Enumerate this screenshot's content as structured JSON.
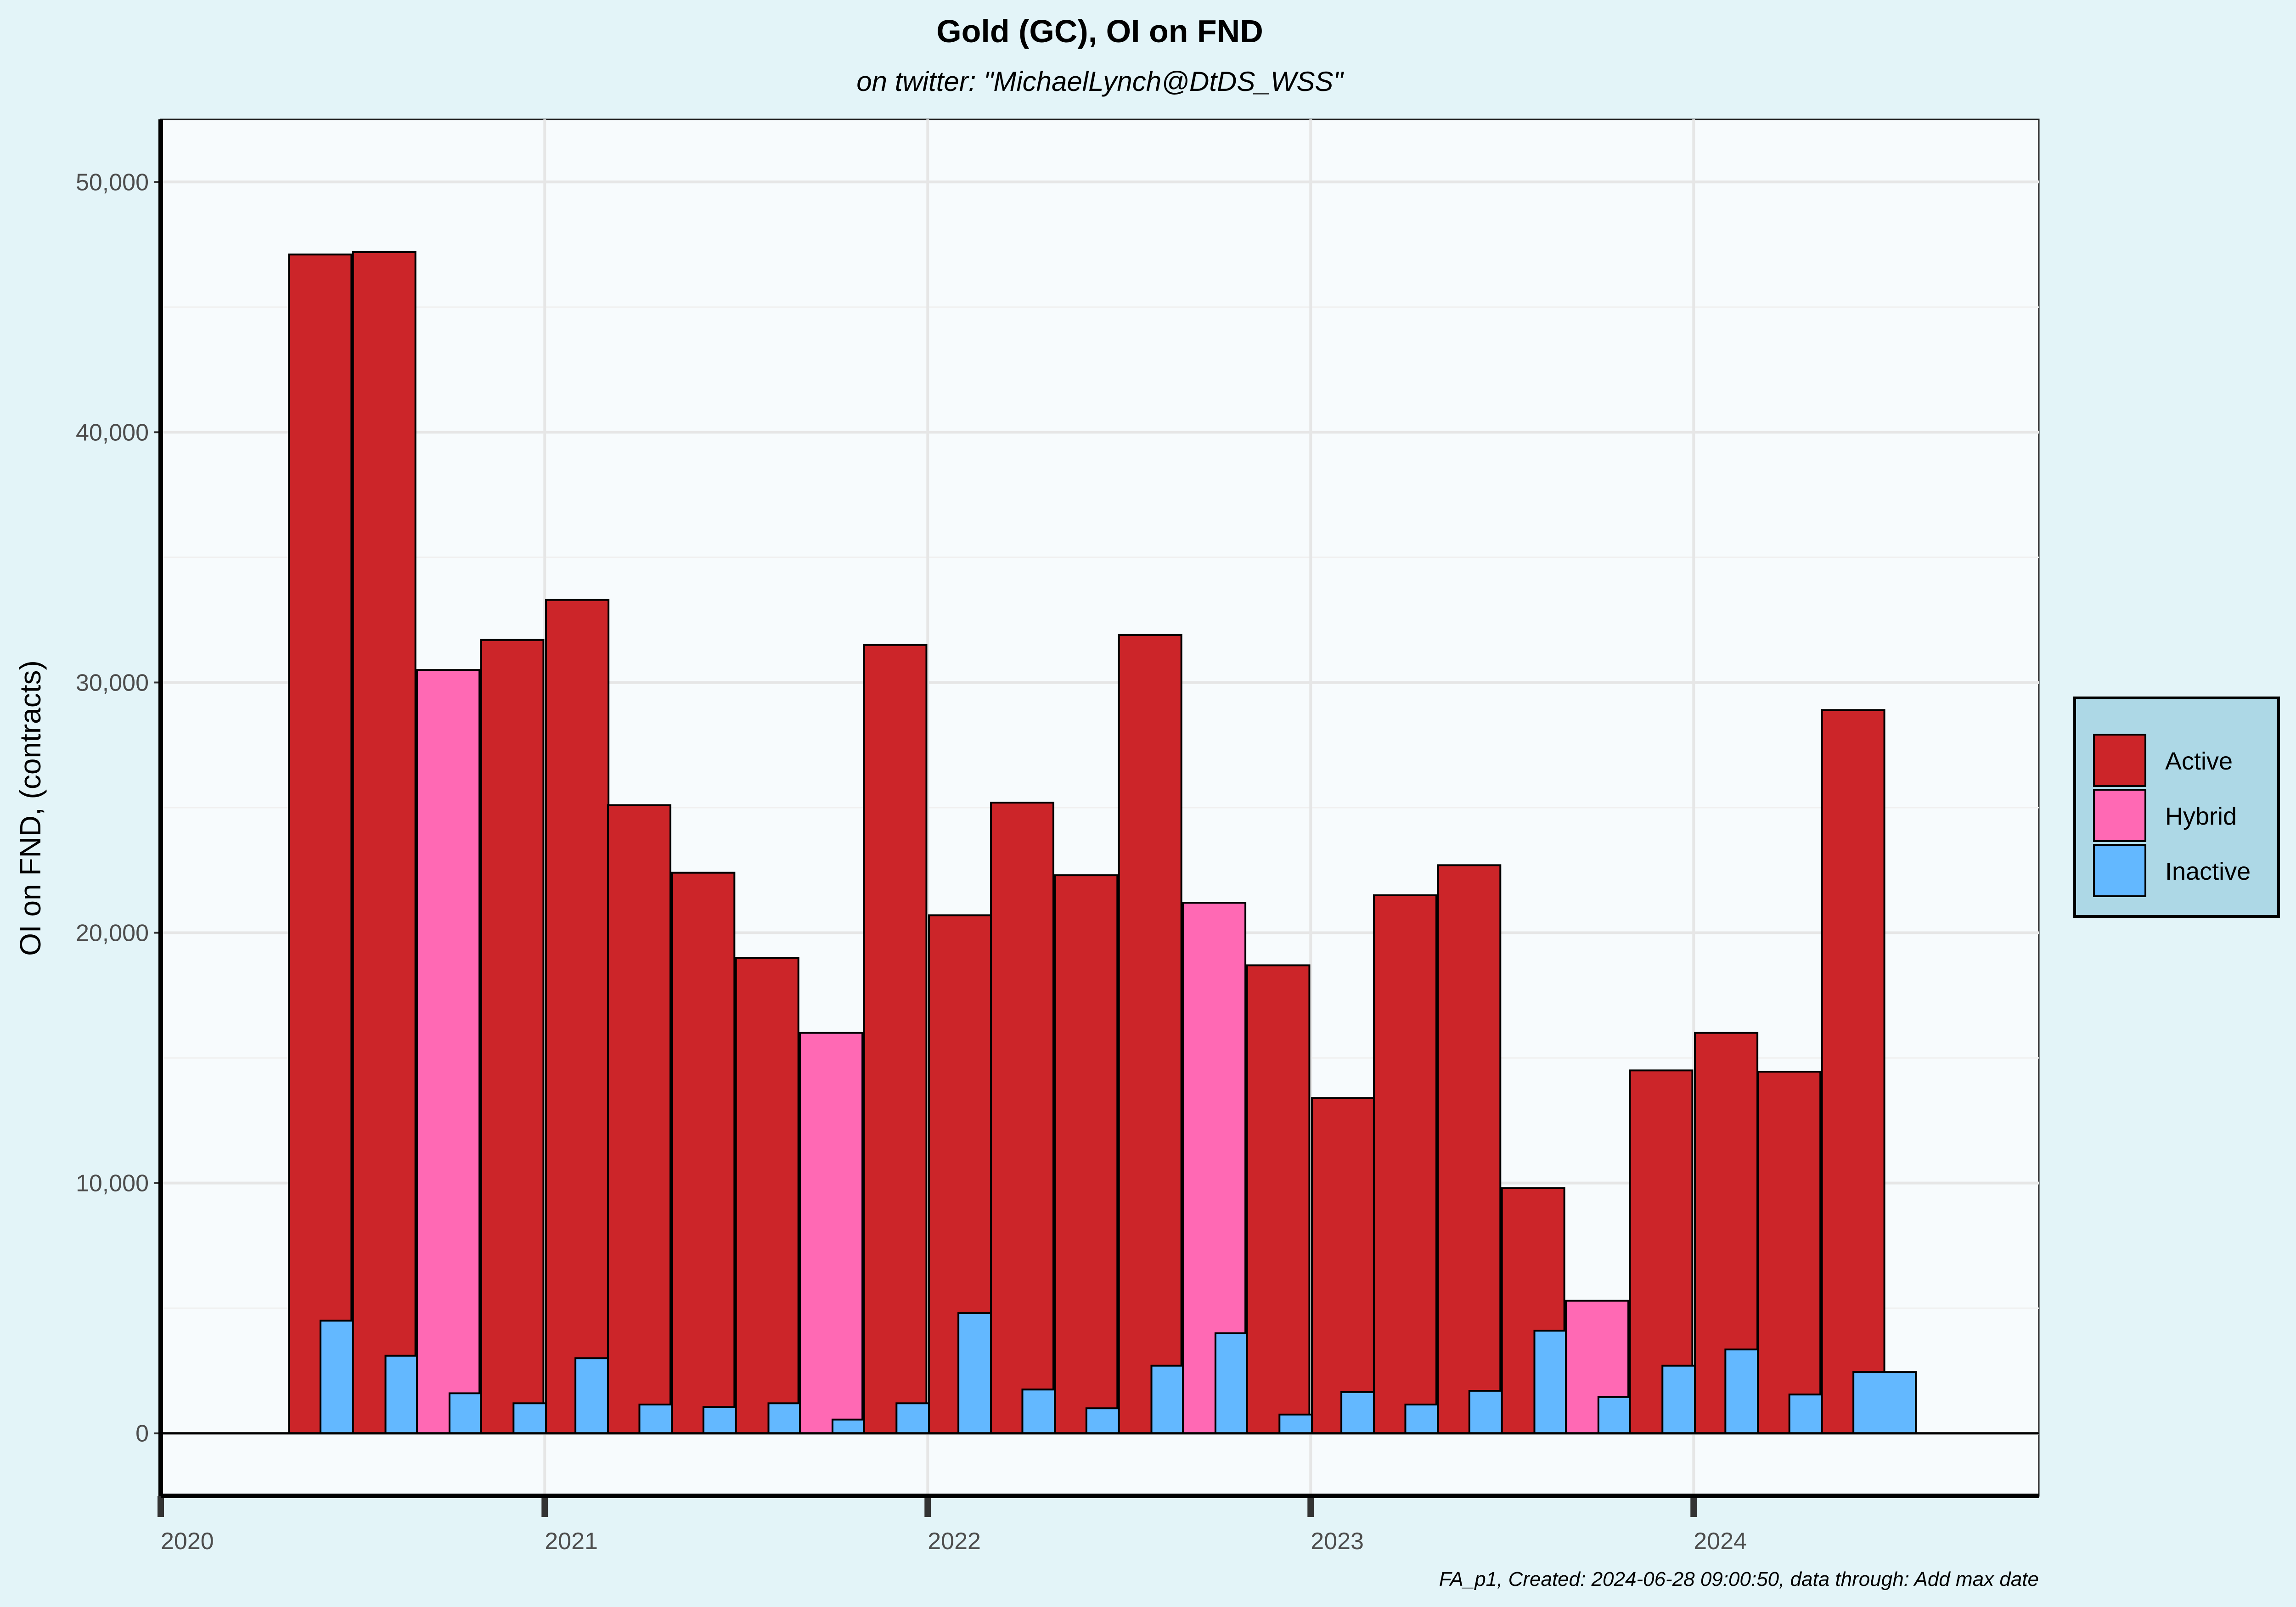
{
  "chart_data": {
    "type": "bar",
    "title": "Gold (GC), OI on FND",
    "subtitle": "on twitter:   \"MichaelLynch@DtDS_WSS\"",
    "xlabel": "",
    "ylabel": "OI on FND, (contracts)",
    "caption": "FA_p1, Created: 2024-06-28 09:00:50, data through:  Add max date",
    "x_tick_labels": [
      "2020",
      "2021",
      "2022",
      "2023",
      "2024"
    ],
    "y_tick_labels": [
      "0",
      "10,000",
      "20,000",
      "30,000",
      "40,000",
      "50,000"
    ],
    "ylim": [
      -2500,
      52500
    ],
    "xlim": [
      "2020-01-01",
      "2024-11-25"
    ],
    "grid": true,
    "legend": {
      "position": "right",
      "entries": [
        "Active",
        "Hybrid",
        "Inactive"
      ]
    },
    "colors": {
      "Active": "#cc2529",
      "Hybrid": "#ff69b4",
      "Inactive": "#63b8ff"
    },
    "bars": [
      {
        "date": "2020-06-01",
        "category": "Active",
        "value": 47100
      },
      {
        "date": "2020-07-01",
        "category": "Inactive",
        "value": 4500
      },
      {
        "date": "2020-08-01",
        "category": "Active",
        "value": 47200
      },
      {
        "date": "2020-09-01",
        "category": "Inactive",
        "value": 3100
      },
      {
        "date": "2020-10-01",
        "category": "Hybrid",
        "value": 30500
      },
      {
        "date": "2020-11-01",
        "category": "Inactive",
        "value": 1600
      },
      {
        "date": "2020-12-01",
        "category": "Active",
        "value": 31700
      },
      {
        "date": "2021-01-01",
        "category": "Inactive",
        "value": 1200
      },
      {
        "date": "2021-02-01",
        "category": "Active",
        "value": 33300
      },
      {
        "date": "2021-03-01",
        "category": "Inactive",
        "value": 3000
      },
      {
        "date": "2021-04-01",
        "category": "Active",
        "value": 25100
      },
      {
        "date": "2021-05-01",
        "category": "Inactive",
        "value": 1150
      },
      {
        "date": "2021-06-01",
        "category": "Active",
        "value": 22400
      },
      {
        "date": "2021-07-01",
        "category": "Inactive",
        "value": 1050
      },
      {
        "date": "2021-08-01",
        "category": "Active",
        "value": 19000
      },
      {
        "date": "2021-09-01",
        "category": "Inactive",
        "value": 1200
      },
      {
        "date": "2021-10-01",
        "category": "Hybrid",
        "value": 16000
      },
      {
        "date": "2021-11-01",
        "category": "Inactive",
        "value": 550
      },
      {
        "date": "2021-12-01",
        "category": "Active",
        "value": 31500
      },
      {
        "date": "2022-01-01",
        "category": "Inactive",
        "value": 1200
      },
      {
        "date": "2022-02-01",
        "category": "Active",
        "value": 20700
      },
      {
        "date": "2022-03-01",
        "category": "Inactive",
        "value": 4800
      },
      {
        "date": "2022-04-01",
        "category": "Active",
        "value": 25200
      },
      {
        "date": "2022-05-01",
        "category": "Inactive",
        "value": 1750
      },
      {
        "date": "2022-06-01",
        "category": "Active",
        "value": 22300
      },
      {
        "date": "2022-07-01",
        "category": "Inactive",
        "value": 1000
      },
      {
        "date": "2022-08-01",
        "category": "Active",
        "value": 31900
      },
      {
        "date": "2022-09-01",
        "category": "Inactive",
        "value": 2700
      },
      {
        "date": "2022-10-01",
        "category": "Hybrid",
        "value": 21200
      },
      {
        "date": "2022-11-01",
        "category": "Inactive",
        "value": 4000
      },
      {
        "date": "2022-12-01",
        "category": "Active",
        "value": 18700
      },
      {
        "date": "2023-01-01",
        "category": "Inactive",
        "value": 750
      },
      {
        "date": "2023-02-01",
        "category": "Active",
        "value": 13400
      },
      {
        "date": "2023-03-01",
        "category": "Inactive",
        "value": 1650
      },
      {
        "date": "2023-04-01",
        "category": "Active",
        "value": 21500
      },
      {
        "date": "2023-05-01",
        "category": "Inactive",
        "value": 1150
      },
      {
        "date": "2023-06-01",
        "category": "Active",
        "value": 22700
      },
      {
        "date": "2023-07-01",
        "category": "Inactive",
        "value": 1700
      },
      {
        "date": "2023-08-01",
        "category": "Active",
        "value": 9800
      },
      {
        "date": "2023-09-01",
        "category": "Inactive",
        "value": 4100
      },
      {
        "date": "2023-10-01",
        "category": "Hybrid",
        "value": 5300
      },
      {
        "date": "2023-11-01",
        "category": "Inactive",
        "value": 1450
      },
      {
        "date": "2023-12-01",
        "category": "Active",
        "value": 14500
      },
      {
        "date": "2024-01-01",
        "category": "Inactive",
        "value": 2700
      },
      {
        "date": "2024-02-01",
        "category": "Active",
        "value": 16000
      },
      {
        "date": "2024-03-01",
        "category": "Inactive",
        "value": 3350
      },
      {
        "date": "2024-04-01",
        "category": "Active",
        "value": 14450
      },
      {
        "date": "2024-05-01",
        "category": "Inactive",
        "value": 1550
      },
      {
        "date": "2024-06-01",
        "category": "Active",
        "value": 28900
      },
      {
        "date": "2024-07-01",
        "category": "Inactive",
        "value": 2450
      }
    ]
  }
}
